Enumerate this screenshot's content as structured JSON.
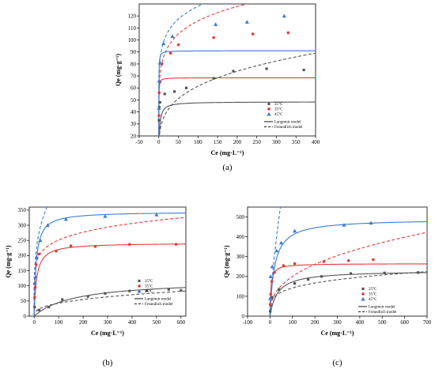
{
  "chart_data": [
    {
      "type": "scatter",
      "panel_label": "(a)",
      "xlabel": "Ce (mg·L⁻¹)",
      "ylabel": "Qe (mg·g⁻¹)",
      "xlim": [
        -50,
        400
      ],
      "ylim": [
        20,
        130
      ],
      "xticks": [
        -50,
        0,
        50,
        100,
        150,
        200,
        250,
        300,
        350,
        400
      ],
      "yticks": [
        20,
        30,
        40,
        50,
        60,
        70,
        80,
        90,
        100,
        110,
        120
      ],
      "legend_position": "bottom-right",
      "series": [
        {
          "name": "25°C",
          "color": "#555555",
          "marker": "square",
          "points": [
            [
              0.5,
              33
            ],
            [
              1,
              44
            ],
            [
              3,
              48
            ],
            [
              15,
              55
            ],
            [
              40,
              57
            ],
            [
              70,
              60
            ],
            [
              140,
              68
            ],
            [
              190,
              74
            ],
            [
              275,
              76
            ],
            [
              370,
              75
            ]
          ],
          "langmuir": {
            "qmax": 48.5,
            "kl": 0.5
          },
          "freundlich": {
            "kf": 18,
            "n": 3.75
          }
        },
        {
          "name": "35°C",
          "color": "#e53a3a",
          "marker": "circle",
          "points": [
            [
              0.5,
              37
            ],
            [
              1,
              56
            ],
            [
              3,
              65
            ],
            [
              8,
              80
            ],
            [
              30,
              89
            ],
            [
              50,
              96
            ],
            [
              140,
              102
            ],
            [
              240,
              105
            ],
            [
              330,
              106
            ]
          ],
          "langmuir": {
            "qmax": 68.5,
            "kl": 5
          },
          "freundlich": {
            "kf": 60,
            "n": 7
          }
        },
        {
          "name": "45°C",
          "color": "#3a7bd5",
          "marker": "triangle",
          "points": [
            [
              0.5,
              43
            ],
            [
              1,
              66
            ],
            [
              3,
              81
            ],
            [
              12,
              97
            ],
            [
              35,
              103
            ],
            [
              145,
              113
            ],
            [
              225,
              115
            ],
            [
              320,
              120
            ]
          ],
          "langmuir": {
            "qmax": 91,
            "kl": 5
          },
          "freundlich": {
            "kf": 72,
            "n": 8
          }
        }
      ],
      "fit_legend": [
        "Langmuir model",
        "Freundlich model"
      ]
    },
    {
      "type": "scatter",
      "panel_label": "(b)",
      "xlabel": "Ce (mg·L⁻¹)",
      "ylabel": "Qe (mg·g⁻¹)",
      "xlim": [
        -20,
        620
      ],
      "ylim": [
        0,
        360
      ],
      "xticks": [
        0,
        100,
        200,
        300,
        400,
        500,
        600
      ],
      "yticks": [
        0,
        50,
        100,
        150,
        200,
        250,
        300,
        350
      ],
      "legend_position": "bottom-right",
      "series": [
        {
          "name": "25°C",
          "color": "#555555",
          "marker": "square",
          "points": [
            [
              2,
              30
            ],
            [
              20,
              20
            ],
            [
              60,
              30
            ],
            [
              115,
              55
            ],
            [
              220,
              65
            ],
            [
              290,
              75
            ],
            [
              390,
              83
            ],
            [
              460,
              85
            ],
            [
              550,
              88
            ],
            [
              600,
              85
            ]
          ],
          "langmuir": {
            "qmax": 120,
            "kl": 0.006
          },
          "freundlich": {
            "kf": 8,
            "n": 2.75
          }
        },
        {
          "name": "35°C",
          "color": "#e53a3a",
          "marker": "circle",
          "points": [
            [
              2,
              62
            ],
            [
              4,
              95
            ],
            [
              8,
              170
            ],
            [
              20,
              205
            ],
            [
              90,
              215
            ],
            [
              150,
              232
            ],
            [
              250,
              230
            ],
            [
              390,
              237
            ],
            [
              580,
              237
            ]
          ],
          "langmuir": {
            "qmax": 242,
            "kl": 0.1
          },
          "freundlich": {
            "kf": 130,
            "n": 7
          }
        },
        {
          "name": "45°C",
          "color": "#3a7bd5",
          "marker": "triangle",
          "points": [
            [
              2,
              110
            ],
            [
              5,
              130
            ],
            [
              10,
              195
            ],
            [
              25,
              250
            ],
            [
              55,
              300
            ],
            [
              130,
              320
            ],
            [
              290,
              330
            ],
            [
              500,
              335
            ]
          ],
          "langmuir": {
            "qmax": 345,
            "kl": 0.12
          },
          "freundlich": {
            "kf": 120,
            "n": 3.6
          }
        }
      ],
      "fit_legend": [
        "Langmuir model",
        "Freundlich model"
      ]
    },
    {
      "type": "scatter",
      "panel_label": "(c)",
      "xlabel": "Ce (mg·L⁻¹)",
      "ylabel": "Qe (mg·g⁻¹)",
      "xlim": [
        -100,
        700
      ],
      "ylim": [
        0,
        550
      ],
      "xticks": [
        -100,
        0,
        100,
        200,
        300,
        400,
        500,
        600,
        700
      ],
      "yticks": [
        0,
        100,
        200,
        300,
        400,
        500
      ],
      "legend_position": "bottom-right",
      "series": [
        {
          "name": "25°C",
          "color": "#555555",
          "marker": "square",
          "points": [
            [
              1,
              25
            ],
            [
              3,
              55
            ],
            [
              10,
              95
            ],
            [
              40,
              135
            ],
            [
              110,
              165
            ],
            [
              170,
              185
            ],
            [
              230,
              200
            ],
            [
              360,
              215
            ],
            [
              510,
              218
            ],
            [
              660,
              220
            ]
          ],
          "langmuir": {
            "qmax": 230,
            "kl": 0.03
          },
          "freundlich": {
            "kf": 48,
            "n": 4.25
          }
        },
        {
          "name": "35°C",
          "color": "#e53a3a",
          "marker": "circle",
          "points": [
            [
              1,
              60
            ],
            [
              3,
              110
            ],
            [
              8,
              175
            ],
            [
              20,
              220
            ],
            [
              60,
              255
            ],
            [
              110,
              265
            ],
            [
              240,
              275
            ],
            [
              350,
              280
            ],
            [
              460,
              285
            ]
          ],
          "langmuir": {
            "qmax": 265,
            "kl": 0.25
          },
          "freundlich": {
            "kf": 34,
            "n": 2.6
          }
        },
        {
          "name": "45°C",
          "color": "#3a7bd5",
          "marker": "triangle",
          "points": [
            [
              1,
              90
            ],
            [
              3,
              200
            ],
            [
              10,
              250
            ],
            [
              30,
              330
            ],
            [
              50,
              370
            ],
            [
              110,
              430
            ],
            [
              330,
              460
            ],
            [
              450,
              470
            ]
          ],
          "langmuir": {
            "qmax": 490,
            "kl": 0.05
          },
          "freundlich": {
            "kf": 39,
            "n": 1.45
          }
        }
      ],
      "fit_legend": [
        "Langmuir model",
        "Freundlich model"
      ]
    }
  ]
}
